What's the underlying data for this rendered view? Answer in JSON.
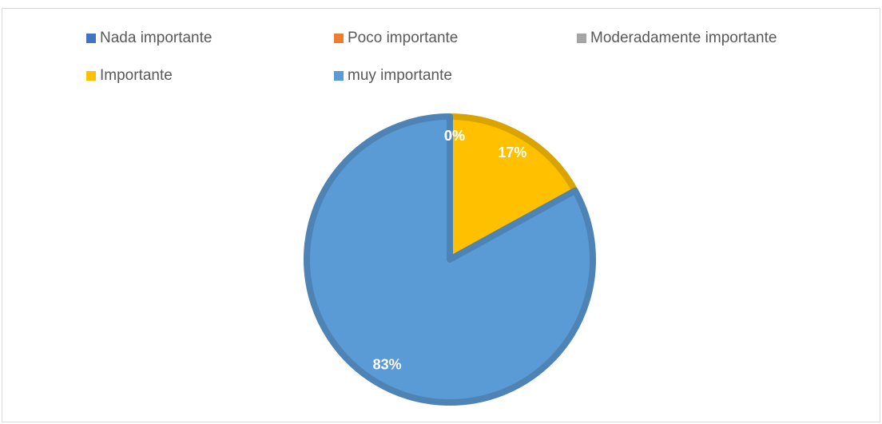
{
  "chart_data": {
    "type": "pie",
    "categories": [
      "Nada importante",
      "Poco importante",
      "Moderadamente importante",
      "Importante",
      "muy importante"
    ],
    "values": [
      0,
      0,
      0,
      17,
      83
    ],
    "value_labels": [
      "0%",
      "0%",
      "0%",
      "17%",
      "83%"
    ],
    "colors": [
      "#4472c4",
      "#ed7d31",
      "#a5a5a5",
      "#ffc000",
      "#5b9bd5"
    ],
    "legend": "top"
  }
}
